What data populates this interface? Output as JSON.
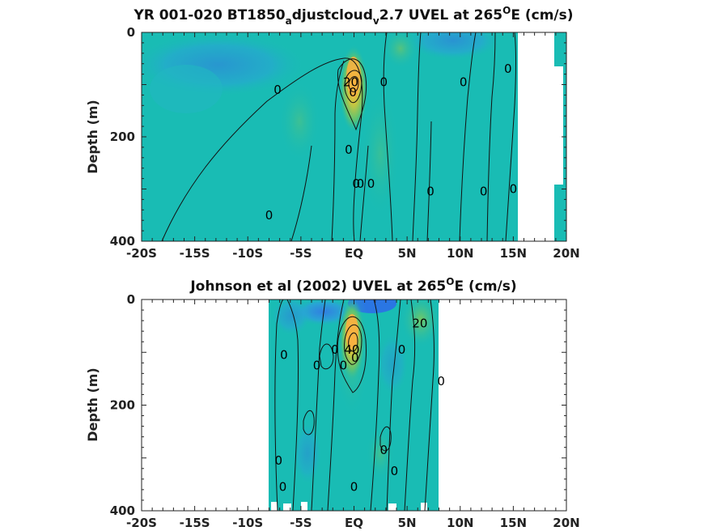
{
  "chart_data": [
    {
      "type": "heatmap",
      "title_parts": [
        "YR 001-020 BT1850",
        "a",
        "djustcloud",
        "v",
        "2.7 UVEL at 265",
        "O",
        "E (cm/s)"
      ],
      "ylabel": "Depth (m)",
      "xlim": [
        -20,
        20
      ],
      "ylim": [
        0,
        400
      ],
      "x_ticks": [
        "-20S",
        "-15S",
        "-10S",
        "-5S",
        "EQ",
        "5N",
        "10N",
        "15N",
        "20N"
      ],
      "y_ticks": [
        "0",
        "200",
        "400"
      ],
      "colors": {
        "background": "#19bcb4",
        "east": "#f5b94a",
        "west": "#3f8fe6"
      },
      "contour_labels": [
        {
          "text": "0",
          "lat": -7.2,
          "depth": 110
        },
        {
          "text": "0",
          "lat": -0.5,
          "depth": 225
        },
        {
          "text": "20",
          "lat": -0.3,
          "depth": 95
        },
        {
          "text": "0",
          "lat": -0.1,
          "depth": 115
        },
        {
          "text": "0",
          "lat": 0.2,
          "depth": 290
        },
        {
          "text": "0",
          "lat": 0.6,
          "depth": 290
        },
        {
          "text": "0",
          "lat": 1.6,
          "depth": 290
        },
        {
          "text": "0",
          "lat": 2.8,
          "depth": 95
        },
        {
          "text": "0",
          "lat": 7.2,
          "depth": 305
        },
        {
          "text": "0",
          "lat": 10.3,
          "depth": 95
        },
        {
          "text": "0",
          "lat": 12.2,
          "depth": 305
        },
        {
          "text": "0",
          "lat": 14.5,
          "depth": 70
        },
        {
          "text": "0",
          "lat": 15,
          "depth": 300
        },
        {
          "text": "0",
          "lat": -8.0,
          "depth": 350
        }
      ],
      "peak": {
        "lat": 0.2,
        "depth": 80,
        "max_value": 40
      },
      "land_mask": [
        {
          "lat_from": 15.5,
          "lat_to": 19.3
        }
      ]
    },
    {
      "type": "heatmap",
      "title_parts": [
        "Johnson et al (2002) UVEL at 265",
        "O",
        "E (cm/s)"
      ],
      "ylabel": "Depth (m)",
      "xlim": [
        -20,
        20
      ],
      "ylim": [
        0,
        400
      ],
      "data_extent": [
        -8,
        8
      ],
      "x_ticks": [
        "-20S",
        "-15S",
        "-10S",
        "-5S",
        "EQ",
        "5N",
        "10N",
        "15N",
        "20N"
      ],
      "y_ticks": [
        "0",
        "200",
        "400"
      ],
      "colors": {
        "background": "#19bcb4",
        "east": "#f5b94a",
        "west": "#3f8fe6"
      },
      "contour_labels": [
        {
          "text": "0",
          "lat": -6.6,
          "depth": 105
        },
        {
          "text": "0",
          "lat": -3.5,
          "depth": 125
        },
        {
          "text": "0",
          "lat": -1.8,
          "depth": 95
        },
        {
          "text": "0",
          "lat": -1.0,
          "depth": 125
        },
        {
          "text": "40",
          "lat": -0.2,
          "depth": 95
        },
        {
          "text": "0",
          "lat": 0.1,
          "depth": 110
        },
        {
          "text": "0",
          "lat": 2.8,
          "depth": 285
        },
        {
          "text": "0",
          "lat": 4.5,
          "depth": 95
        },
        {
          "text": "20",
          "lat": 6.2,
          "depth": 45
        },
        {
          "text": "0",
          "lat": 8.2,
          "depth": 155
        },
        {
          "text": "0",
          "lat": 3.8,
          "depth": 325
        },
        {
          "text": "0",
          "lat": -7.1,
          "depth": 305
        },
        {
          "text": "0",
          "lat": -6.7,
          "depth": 355
        },
        {
          "text": "0",
          "lat": 0.0,
          "depth": 355
        }
      ],
      "peak": {
        "lat": 0.0,
        "depth": 70,
        "max_value": 40
      }
    }
  ]
}
